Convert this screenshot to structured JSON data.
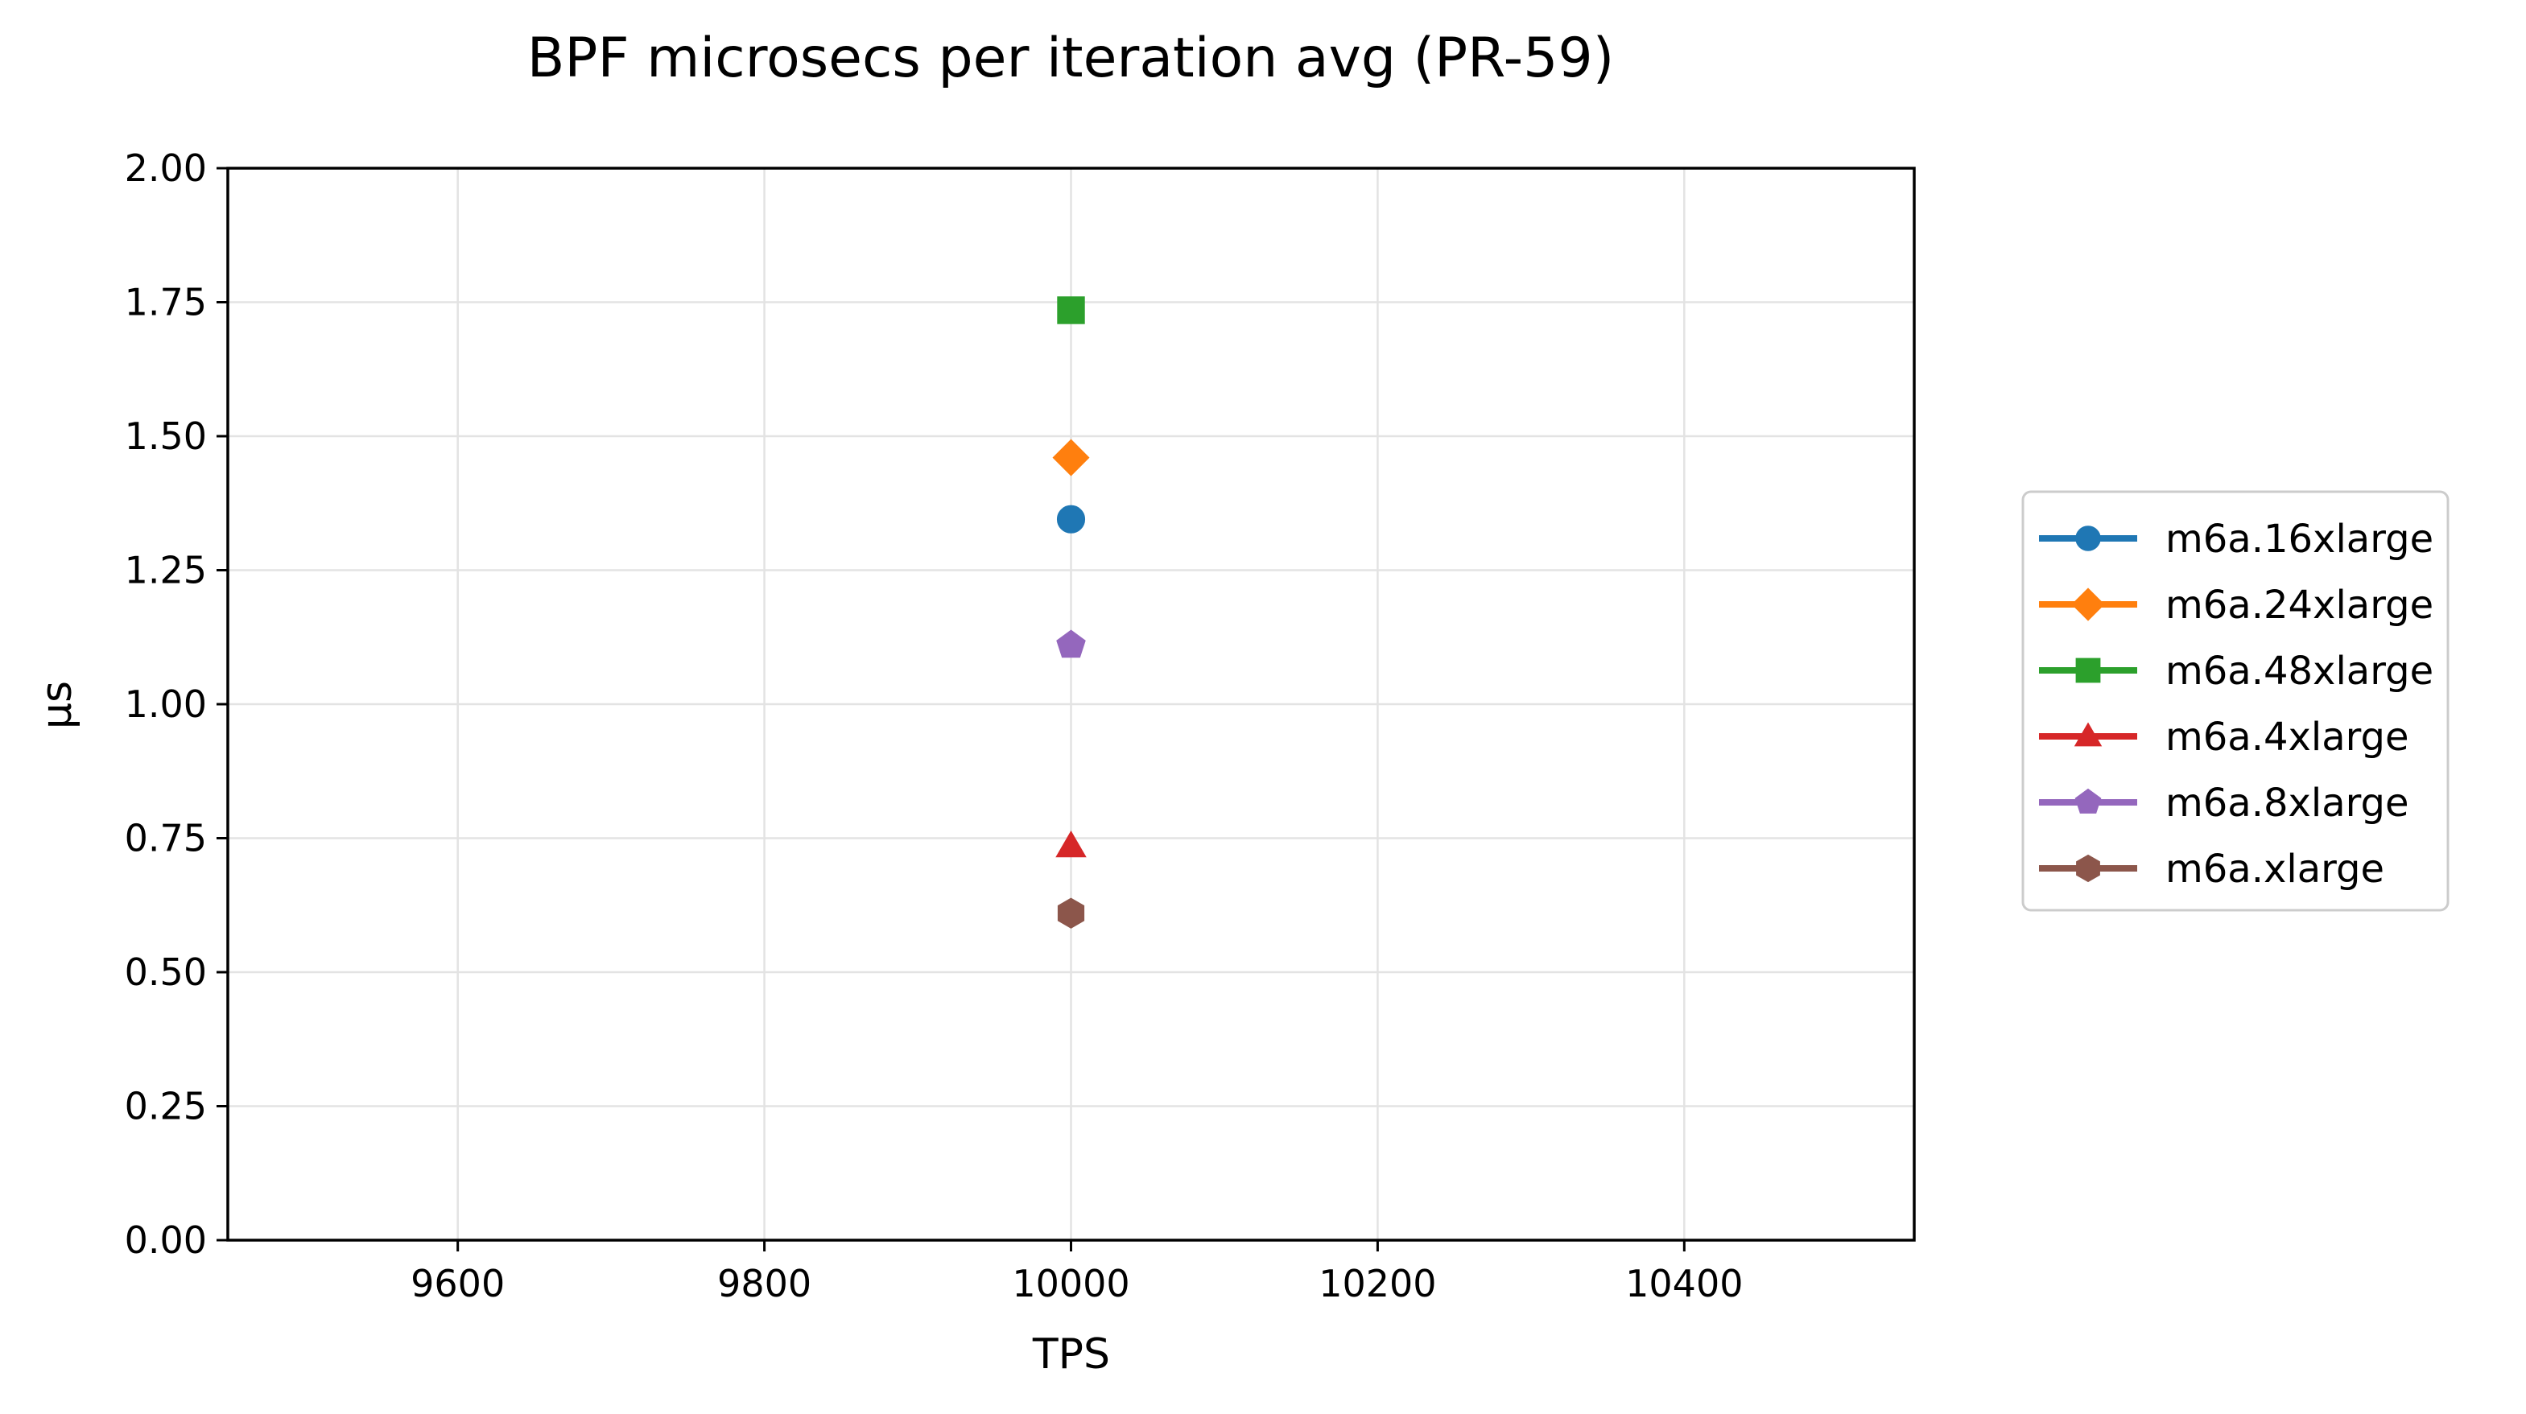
{
  "chart_data": {
    "type": "scatter",
    "title": "BPF microsecs per iteration avg (PR-59)",
    "xlabel": "TPS",
    "ylabel": "μs",
    "xlim": [
      9450,
      10550
    ],
    "ylim": [
      0,
      2.0
    ],
    "xticks": [
      9600,
      9800,
      10000,
      10200,
      10400
    ],
    "xtick_labels": [
      "9600",
      "9800",
      "10000",
      "10200",
      "10400"
    ],
    "yticks": [
      0,
      0.25,
      0.5,
      0.75,
      1.0,
      1.25,
      1.5,
      1.75,
      2.0
    ],
    "ytick_labels": [
      "0.00",
      "0.25",
      "0.50",
      "0.75",
      "1.00",
      "1.25",
      "1.50",
      "1.75",
      "2.00"
    ],
    "grid": true,
    "legend_position": "outside-right",
    "series": [
      {
        "name": "m6a.16xlarge",
        "color": "#1f77b4",
        "marker": "circle",
        "x": [
          10000
        ],
        "y": [
          1.345
        ]
      },
      {
        "name": "m6a.24xlarge",
        "color": "#ff7f0e",
        "marker": "diamond",
        "x": [
          10000
        ],
        "y": [
          1.46
        ]
      },
      {
        "name": "m6a.48xlarge",
        "color": "#2ca02c",
        "marker": "square",
        "x": [
          10000
        ],
        "y": [
          1.735
        ]
      },
      {
        "name": "m6a.4xlarge",
        "color": "#d62728",
        "marker": "triangle",
        "x": [
          10000
        ],
        "y": [
          0.735
        ]
      },
      {
        "name": "m6a.8xlarge",
        "color": "#9467bd",
        "marker": "pentagon",
        "x": [
          10000
        ],
        "y": [
          1.11
        ]
      },
      {
        "name": "m6a.xlarge",
        "color": "#8c564b",
        "marker": "hexagon",
        "x": [
          10000
        ],
        "y": [
          0.61
        ]
      }
    ]
  }
}
